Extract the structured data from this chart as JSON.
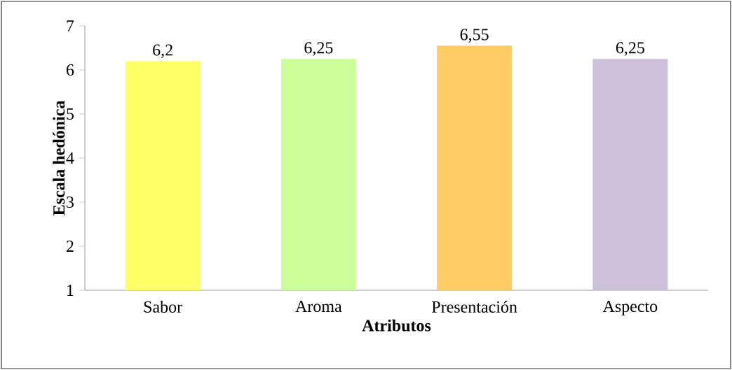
{
  "chart_data": {
    "type": "bar",
    "xlabel": "Atributos",
    "ylabel": "Escala hedónica",
    "categories": [
      "Sabor",
      "Aroma",
      "Presentación",
      "Aspecto"
    ],
    "values": [
      6.2,
      6.25,
      6.55,
      6.25
    ],
    "colors": [
      "#ffff66",
      "#ccff99",
      "#ffcc66",
      "#ccc0da"
    ],
    "value_labels": [
      "6,2",
      "6,25",
      "6,55",
      "6,25"
    ],
    "ylim": [
      1,
      7
    ],
    "yticks": [
      1,
      2,
      3,
      4,
      5,
      6,
      7
    ],
    "grid": false
  }
}
